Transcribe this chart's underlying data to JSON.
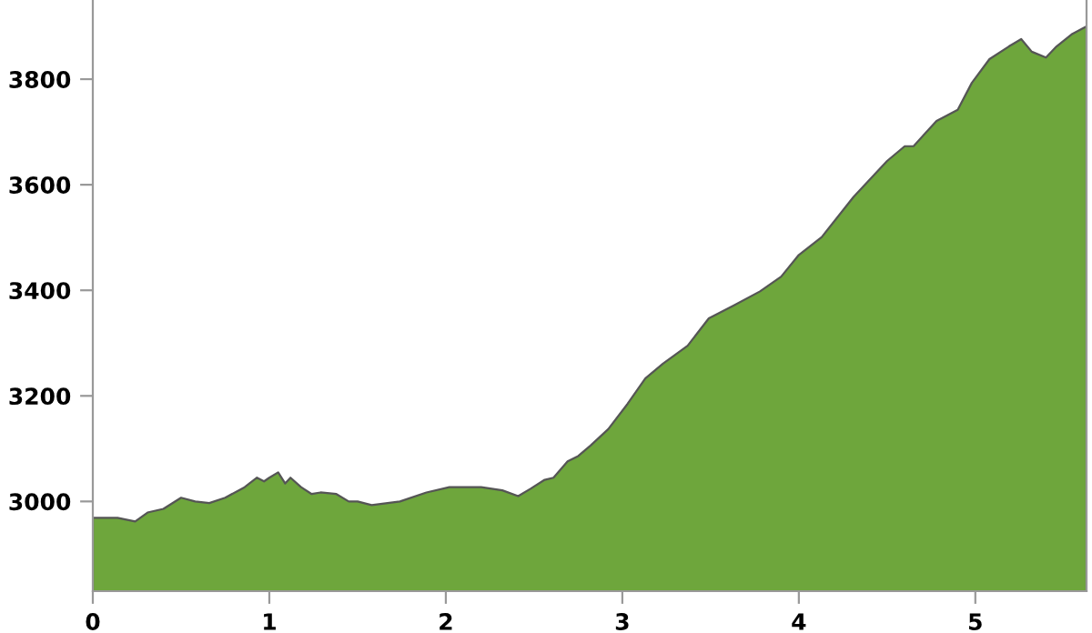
{
  "chart_data": {
    "type": "area",
    "x": [
      0,
      0.14,
      0.24,
      0.31,
      0.4,
      0.5,
      0.58,
      0.66,
      0.75,
      0.86,
      0.93,
      0.97,
      1.0,
      1.05,
      1.09,
      1.12,
      1.18,
      1.24,
      1.29,
      1.38,
      1.45,
      1.5,
      1.58,
      1.74,
      1.89,
      2.02,
      2.2,
      2.32,
      2.41,
      2.48,
      2.56,
      2.61,
      2.69,
      2.75,
      2.82,
      2.92,
      3.03,
      3.13,
      3.23,
      3.37,
      3.49,
      3.63,
      3.78,
      3.9,
      4.0,
      4.13,
      4.31,
      4.5,
      4.6,
      4.65,
      4.78,
      4.9,
      4.98,
      5.08,
      5.19,
      5.26,
      5.32,
      5.4,
      5.46,
      5.55,
      5.63
    ],
    "series": [
      {
        "color": "#6ea63c",
        "values": [
          2969,
          2969,
          2962,
          2979,
          2986,
          3007,
          3000,
          2997,
          3007,
          3027,
          3045,
          3038,
          3045,
          3055,
          3034,
          3045,
          3027,
          3014,
          3017,
          3014,
          3000,
          3000,
          2993,
          3000,
          3017,
          3027,
          3027,
          3021,
          3010,
          3024,
          3041,
          3045,
          3076,
          3086,
          3106,
          3137,
          3185,
          3233,
          3261,
          3295,
          3347,
          3371,
          3398,
          3426,
          3467,
          3501,
          3577,
          3645,
          3673,
          3673,
          3721,
          3742,
          3793,
          3838,
          3862,
          3876,
          3852,
          3841,
          3862,
          3886,
          3900
        ]
      }
    ],
    "xlim": [
      0,
      5.63
    ],
    "xticks": [
      0,
      1,
      2,
      3,
      4,
      5
    ],
    "ylim": [
      2830,
      3950
    ],
    "yticks": [
      3000,
      3200,
      3400,
      3600,
      3800
    ],
    "grid": false,
    "legend": false
  }
}
